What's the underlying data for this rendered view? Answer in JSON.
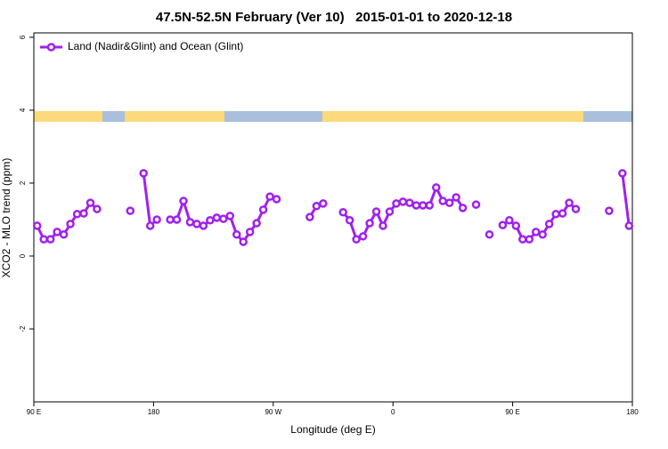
{
  "chart_data": {
    "type": "line",
    "title": "47.5N-52.5N February (Ver 10)   2015-01-01 to 2020-12-18",
    "xlabel": "Longitude (deg E)",
    "ylabel": "XCO2 - MLO trend (ppm)",
    "xlim": [
      -270,
      180
    ],
    "ylim": [
      -4,
      6.12
    ],
    "xticks": [
      {
        "value": -270,
        "label": "90 E"
      },
      {
        "value": -180,
        "label": "180"
      },
      {
        "value": -90,
        "label": "90 W"
      },
      0,
      {
        "value": 90,
        "label": "90 E"
      },
      180
    ],
    "yticks": [
      -2,
      0,
      2,
      4,
      6
    ],
    "legend": "top-left",
    "x": [
      -267.5,
      -262.5,
      -257.5,
      -252.5,
      -247.5,
      -242.5,
      -237.5,
      -232.5,
      -227.5,
      -222.5,
      -217.5,
      -212.5,
      -207.5,
      -202.5,
      -197.5,
      -192.5,
      -187.5,
      -182.5,
      -177.5,
      -172.5,
      -167.5,
      -162.5,
      -157.5,
      -152.5,
      -147.5,
      -142.5,
      -137.5,
      -132.5,
      -127.5,
      -122.5,
      -117.5,
      -112.5,
      -107.5,
      -102.5,
      -97.5,
      -92.5,
      -87.5,
      -82.5,
      -77.5,
      -72.5,
      -67.5,
      -62.5,
      -57.5,
      -52.5,
      -47.5,
      -42.5,
      -37.5,
      -32.5,
      -27.5,
      -22.5,
      -17.5,
      -12.5,
      -7.5,
      -2.5,
      2.5,
      7.5,
      12.5,
      17.5,
      22.5,
      27.5,
      32.5,
      37.5,
      42.5,
      47.5,
      52.5,
      57.5,
      62.5,
      67.5,
      72.5,
      77.5,
      82.5,
      87.5,
      92.5,
      97.5,
      102.5,
      107.5,
      112.5,
      117.5,
      122.5,
      127.5,
      132.5,
      137.5,
      142.5,
      147.5,
      152.5,
      157.5,
      162.5,
      167.5,
      172.5,
      177.5
    ],
    "series": [
      {
        "name": "Land (Nadir&Glint) and Ocean (Glint)",
        "color": "#a020f0",
        "values": [
          0.83,
          0.46,
          0.46,
          0.66,
          0.59,
          0.88,
          1.15,
          1.17,
          1.46,
          1.29,
          null,
          null,
          null,
          null,
          1.24,
          null,
          2.27,
          0.83,
          1.0,
          null,
          1.0,
          1.0,
          1.51,
          0.93,
          0.88,
          0.83,
          0.98,
          1.05,
          1.02,
          1.1,
          0.59,
          0.39,
          0.66,
          0.9,
          1.27,
          1.63,
          1.56,
          null,
          null,
          null,
          null,
          1.07,
          1.37,
          1.44,
          null,
          null,
          1.2,
          0.98,
          0.46,
          0.54,
          0.9,
          1.22,
          0.83,
          1.22,
          1.44,
          1.49,
          1.46,
          1.39,
          1.39,
          1.39,
          1.88,
          1.51,
          1.46,
          1.61,
          1.32,
          null,
          1.41,
          null,
          0.59,
          null,
          0.85,
          0.98,
          0.83,
          0.46,
          0.46,
          0.66,
          0.59,
          0.88,
          1.15,
          1.17,
          1.46,
          1.29,
          null,
          null,
          null,
          null,
          1.24,
          null,
          2.27,
          0.83
        ]
      }
    ]
  }
}
